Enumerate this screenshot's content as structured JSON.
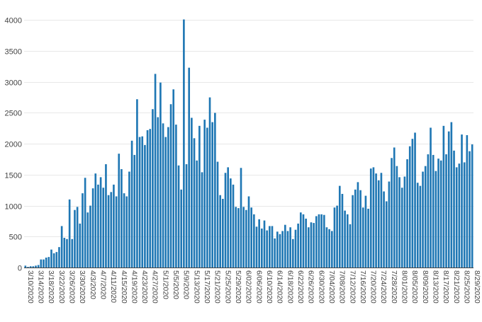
{
  "chart_data": {
    "type": "bar",
    "title": "",
    "xlabel": "",
    "ylabel": "",
    "ylim": [
      0,
      4050
    ],
    "yticks": [
      0,
      500,
      1000,
      1500,
      2000,
      2500,
      3000,
      3500,
      4000
    ],
    "grid": true,
    "bar_color": "#1f77b4",
    "start_date": "2020-03-10",
    "xtick_labels": [
      "3/10/2020",
      "3/14/2020",
      "3/18/2020",
      "3/22/2020",
      "3/26/2020",
      "3/30/2020",
      "4/3/2020",
      "4/7/2020",
      "4/11/2020",
      "4/15/2020",
      "4/19/2020",
      "4/23/2020",
      "4/27/2020",
      "5/1/2020",
      "5/5/2020",
      "5/9/2020",
      "5/13/2020",
      "5/17/2020",
      "5/21/2020",
      "5/25/2020",
      "5/29/2020",
      "6/02/2020",
      "6/06/2020",
      "6/10/2020",
      "6/14/2020",
      "6/18/2020",
      "6/22/2020",
      "6/26/2020",
      "6/30/2020",
      "7/04/2020",
      "7/08/2020",
      "7/12/2020",
      "7/16/2020",
      "7/20/2020",
      "7/24/2020",
      "7/28/2020",
      "8/01/2020",
      "8/05/2020",
      "8/09/2020",
      "8/13/2020",
      "8/17/2020",
      "8/21/2020",
      "8/25/2020",
      "8/29/2020"
    ],
    "values": [
      30,
      10,
      20,
      20,
      30,
      40,
      130,
      130,
      160,
      170,
      290,
      230,
      250,
      330,
      670,
      480,
      460,
      1100,
      460,
      930,
      980,
      710,
      1200,
      1450,
      890,
      1000,
      1280,
      1520,
      1340,
      1460,
      1290,
      1670,
      1170,
      1220,
      1340,
      1150,
      1840,
      1590,
      1200,
      1150,
      1550,
      2050,
      1820,
      2720,
      2110,
      2120,
      1980,
      2220,
      2240,
      2560,
      3130,
      2430,
      2990,
      2330,
      2110,
      2270,
      2640,
      2880,
      2310,
      1650,
      1260,
      4010,
      1670,
      3230,
      2420,
      2090,
      1730,
      2290,
      1540,
      2390,
      2260,
      2750,
      2350,
      2500,
      1710,
      1170,
      1110,
      1530,
      1620,
      1440,
      1340,
      980,
      960,
      1610,
      980,
      930,
      1150,
      970,
      860,
      660,
      780,
      630,
      760,
      600,
      670,
      670,
      470,
      580,
      540,
      590,
      690,
      590,
      650,
      460,
      610,
      710,
      890,
      860,
      790,
      650,
      730,
      720,
      830,
      860,
      860,
      850,
      650,
      620,
      590,
      970,
      1000,
      1320,
      1190,
      920,
      860,
      700,
      1170,
      1260,
      1380,
      1250,
      970,
      1160,
      950,
      1600,
      1620,
      1520,
      1410,
      1530,
      1230,
      1070,
      1390,
      1770,
      1940,
      1640,
      1460,
      1290,
      1470,
      1750,
      1960,
      2080,
      2180,
      1370,
      1320,
      1550,
      1640,
      1830,
      2260,
      1820,
      1560,
      1760,
      1730,
      2290,
      1830,
      2200,
      2350,
      1890,
      1620,
      1680,
      2150,
      1700,
      2140,
      1880,
      1990
    ]
  }
}
